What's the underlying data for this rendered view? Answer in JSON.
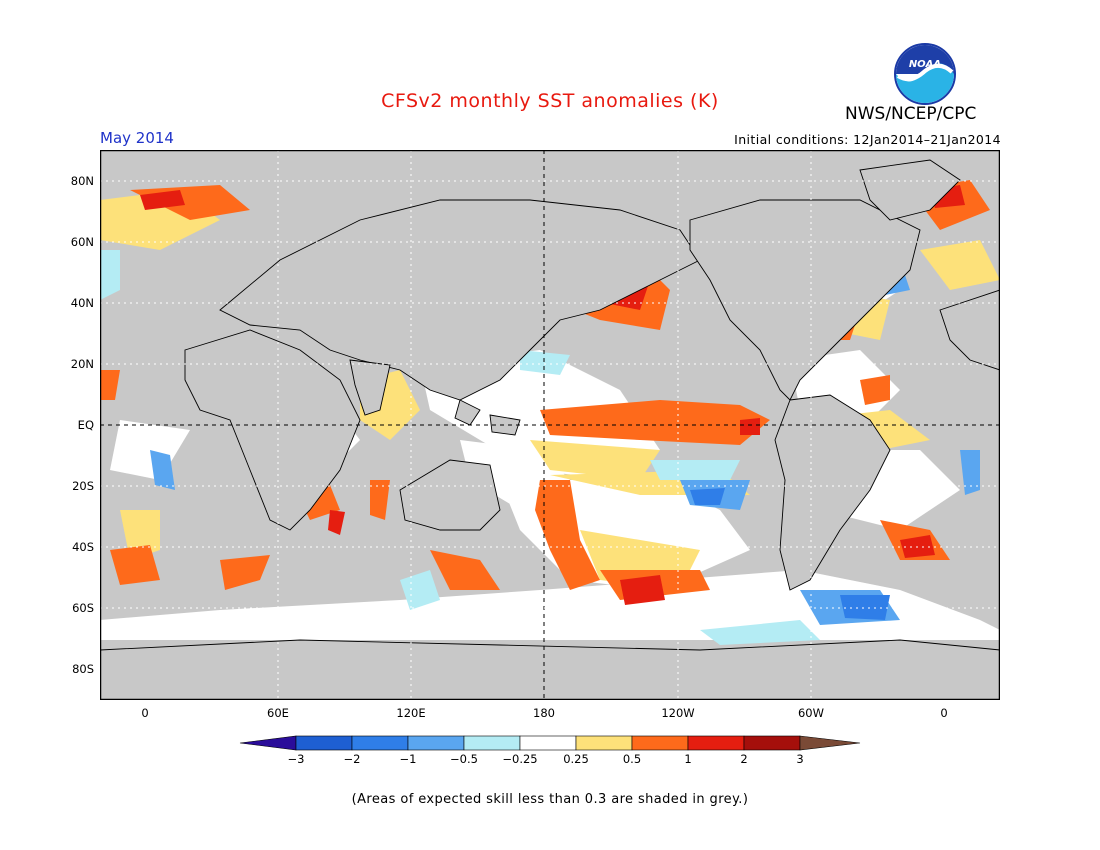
{
  "header": {
    "title": "CFSv2 monthly SST anomalies (K)",
    "month": "May 2014",
    "initial_conditions": "Initial conditions: 12Jan2014–21Jan2014",
    "agency": "NWS/NCEP/CPC",
    "logo_text": "NOAA"
  },
  "map": {
    "lat_labels": [
      "80N",
      "60N",
      "40N",
      "20N",
      "EQ",
      "20S",
      "40S",
      "60S",
      "80S"
    ],
    "lon_labels": [
      "0",
      "60E",
      "120E",
      "180",
      "120W",
      "60W",
      "0"
    ],
    "background_color": "#c8c8c8",
    "land_color": "#c8c8c8"
  },
  "colorbar": {
    "tick_labels": [
      "−3",
      "−2",
      "−1",
      "−0.5",
      "−0.25",
      "0.25",
      "0.5",
      "1",
      "2",
      "3"
    ],
    "colors": [
      "#2a0d9a",
      "#1e5fd2",
      "#2f7ee8",
      "#5aa6f0",
      "#b4ecf4",
      "#ffffff",
      "#fde17a",
      "#fe6a1b",
      "#e51e10",
      "#a50f0b",
      "#7a4a36"
    ]
  },
  "footnote": "(Areas of expected skill less than 0.3 are shaded in grey.)"
}
